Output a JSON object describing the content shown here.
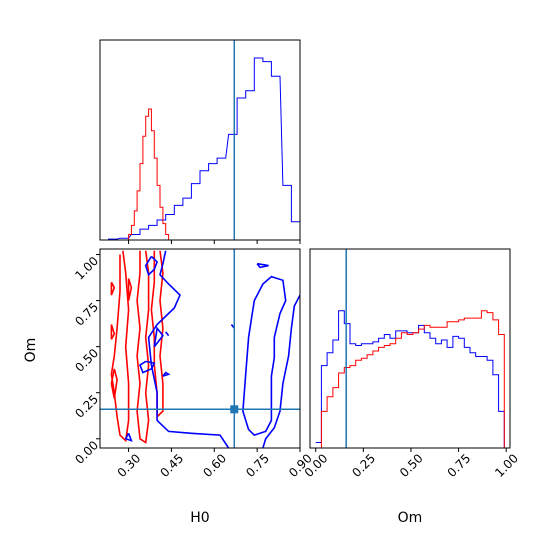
{
  "chart_data": {
    "type": "corner",
    "parameters": [
      "H0",
      "Om"
    ],
    "truths": {
      "H0": 0.67,
      "Om": 0.16
    },
    "colors": {
      "series_red": "#ff0000",
      "series_blue": "#0000ff",
      "truth": "#1f77b4"
    },
    "axis_label_H0": "H0",
    "axis_label_Om": "Om",
    "xlim_H0": [
      0.2,
      0.9
    ],
    "xlim_Om": [
      -0.03,
      1.02
    ],
    "ylim_Om": [
      -0.05,
      1.03
    ],
    "ticks_H0": [
      {
        "v": 0.3,
        "label": "0.30"
      },
      {
        "v": 0.45,
        "label": "0.45"
      },
      {
        "v": 0.6,
        "label": "0.60"
      },
      {
        "v": 0.75,
        "label": "0.75"
      },
      {
        "v": 0.9,
        "label": "0.90"
      }
    ],
    "ticks_Om": [
      {
        "v": 0.0,
        "label": "0.00"
      },
      {
        "v": 0.25,
        "label": "0.25"
      },
      {
        "v": 0.5,
        "label": "0.50"
      },
      {
        "v": 0.75,
        "label": "0.75"
      },
      {
        "v": 1.0,
        "label": "1.00"
      }
    ],
    "hist_H0": {
      "blue": [
        [
          0.2,
          0.0
        ],
        [
          0.23,
          0.005
        ],
        [
          0.27,
          0.01
        ],
        [
          0.31,
          0.03
        ],
        [
          0.34,
          0.06
        ],
        [
          0.37,
          0.08
        ],
        [
          0.4,
          0.11
        ],
        [
          0.43,
          0.14
        ],
        [
          0.46,
          0.19
        ],
        [
          0.49,
          0.23
        ],
        [
          0.52,
          0.31
        ],
        [
          0.55,
          0.38
        ],
        [
          0.58,
          0.42
        ],
        [
          0.61,
          0.45
        ],
        [
          0.65,
          0.58
        ],
        [
          0.68,
          0.78
        ],
        [
          0.71,
          0.82
        ],
        [
          0.74,
          1.0
        ],
        [
          0.77,
          0.98
        ],
        [
          0.8,
          0.9
        ],
        [
          0.84,
          0.3
        ],
        [
          0.87,
          0.1
        ],
        [
          0.9,
          0.0
        ]
      ],
      "red": [
        [
          0.2,
          0.0
        ],
        [
          0.29,
          0.0
        ],
        [
          0.3,
          0.03
        ],
        [
          0.31,
          0.08
        ],
        [
          0.32,
          0.16
        ],
        [
          0.33,
          0.27
        ],
        [
          0.34,
          0.42
        ],
        [
          0.35,
          0.57
        ],
        [
          0.36,
          0.68
        ],
        [
          0.37,
          0.72
        ],
        [
          0.38,
          0.6
        ],
        [
          0.39,
          0.45
        ],
        [
          0.4,
          0.3
        ],
        [
          0.41,
          0.18
        ],
        [
          0.42,
          0.09
        ],
        [
          0.43,
          0.03
        ],
        [
          0.44,
          0.0
        ]
      ]
    },
    "hist_Om": {
      "blue": [
        [
          0.0,
          0.03
        ],
        [
          0.03,
          0.45
        ],
        [
          0.06,
          0.52
        ],
        [
          0.09,
          0.59
        ],
        [
          0.12,
          0.75
        ],
        [
          0.15,
          0.68
        ],
        [
          0.18,
          0.57
        ],
        [
          0.21,
          0.56
        ],
        [
          0.24,
          0.57
        ],
        [
          0.27,
          0.57
        ],
        [
          0.3,
          0.58
        ],
        [
          0.33,
          0.6
        ],
        [
          0.36,
          0.62
        ],
        [
          0.39,
          0.6
        ],
        [
          0.42,
          0.64
        ],
        [
          0.45,
          0.64
        ],
        [
          0.48,
          0.63
        ],
        [
          0.51,
          0.63
        ],
        [
          0.54,
          0.67
        ],
        [
          0.57,
          0.63
        ],
        [
          0.6,
          0.6
        ],
        [
          0.63,
          0.57
        ],
        [
          0.66,
          0.59
        ],
        [
          0.69,
          0.55
        ],
        [
          0.72,
          0.61
        ],
        [
          0.75,
          0.6
        ],
        [
          0.78,
          0.55
        ],
        [
          0.81,
          0.52
        ],
        [
          0.84,
          0.5
        ],
        [
          0.87,
          0.5
        ],
        [
          0.9,
          0.48
        ],
        [
          0.93,
          0.4
        ],
        [
          0.96,
          0.2
        ],
        [
          0.99,
          0.0
        ]
      ],
      "red": [
        [
          0.0,
          0.0
        ],
        [
          0.03,
          0.2
        ],
        [
          0.06,
          0.28
        ],
        [
          0.09,
          0.33
        ],
        [
          0.12,
          0.41
        ],
        [
          0.15,
          0.44
        ],
        [
          0.18,
          0.45
        ],
        [
          0.21,
          0.48
        ],
        [
          0.24,
          0.49
        ],
        [
          0.27,
          0.51
        ],
        [
          0.3,
          0.53
        ],
        [
          0.33,
          0.55
        ],
        [
          0.36,
          0.56
        ],
        [
          0.39,
          0.57
        ],
        [
          0.42,
          0.6
        ],
        [
          0.45,
          0.63
        ],
        [
          0.48,
          0.62
        ],
        [
          0.51,
          0.63
        ],
        [
          0.54,
          0.65
        ],
        [
          0.57,
          0.67
        ],
        [
          0.6,
          0.66
        ],
        [
          0.63,
          0.66
        ],
        [
          0.66,
          0.66
        ],
        [
          0.69,
          0.69
        ],
        [
          0.72,
          0.69
        ],
        [
          0.75,
          0.7
        ],
        [
          0.78,
          0.71
        ],
        [
          0.81,
          0.71
        ],
        [
          0.84,
          0.71
        ],
        [
          0.87,
          0.75
        ],
        [
          0.9,
          0.74
        ],
        [
          0.93,
          0.7
        ],
        [
          0.96,
          0.62
        ],
        [
          0.99,
          0.0
        ]
      ]
    },
    "contours": {
      "red": [
        [
          [
            0.27,
            1.0
          ],
          [
            0.27,
            0.8
          ],
          [
            0.26,
            0.6
          ],
          [
            0.25,
            0.45
          ],
          [
            0.24,
            0.35
          ],
          [
            0.25,
            0.25
          ],
          [
            0.26,
            0.12
          ],
          [
            0.27,
            0.02
          ],
          [
            0.29,
            -0.01
          ],
          [
            0.3,
            0.1
          ],
          [
            0.3,
            0.3
          ],
          [
            0.29,
            0.5
          ],
          [
            0.3,
            0.7
          ],
          [
            0.29,
            0.9
          ],
          [
            0.28,
            1.02
          ]
        ],
        [
          [
            0.34,
            1.02
          ],
          [
            0.34,
            0.9
          ],
          [
            0.33,
            0.75
          ],
          [
            0.34,
            0.6
          ],
          [
            0.33,
            0.45
          ],
          [
            0.34,
            0.3
          ],
          [
            0.33,
            0.15
          ],
          [
            0.34,
            0.0
          ],
          [
            0.36,
            -0.02
          ],
          [
            0.37,
            0.1
          ],
          [
            0.36,
            0.25
          ],
          [
            0.37,
            0.4
          ],
          [
            0.36,
            0.55
          ],
          [
            0.37,
            0.7
          ],
          [
            0.37,
            0.9
          ],
          [
            0.36,
            1.02
          ]
        ],
        [
          [
            0.39,
            1.02
          ],
          [
            0.39,
            0.85
          ],
          [
            0.38,
            0.7
          ],
          [
            0.39,
            0.55
          ],
          [
            0.39,
            0.4
          ],
          [
            0.4,
            0.25
          ],
          [
            0.4,
            0.12
          ],
          [
            0.42,
            0.15
          ],
          [
            0.42,
            0.3
          ],
          [
            0.41,
            0.45
          ],
          [
            0.42,
            0.6
          ],
          [
            0.41,
            0.75
          ],
          [
            0.42,
            0.9
          ],
          [
            0.41,
            1.02
          ]
        ],
        [
          [
            0.25,
            0.38
          ],
          [
            0.24,
            0.3
          ],
          [
            0.25,
            0.22
          ],
          [
            0.26,
            0.32
          ],
          [
            0.25,
            0.38
          ]
        ],
        [
          [
            0.24,
            0.62
          ],
          [
            0.24,
            0.54
          ],
          [
            0.25,
            0.57
          ],
          [
            0.24,
            0.62
          ]
        ],
        [
          [
            0.24,
            0.85
          ],
          [
            0.24,
            0.78
          ],
          [
            0.25,
            0.82
          ],
          [
            0.24,
            0.85
          ]
        ],
        [
          [
            0.3,
            0.87
          ],
          [
            0.31,
            0.82
          ],
          [
            0.3,
            0.75
          ],
          [
            0.3,
            0.87
          ]
        ]
      ],
      "blue": [
        [
          [
            0.65,
            -0.05
          ],
          [
            0.62,
            0.02
          ],
          [
            0.52,
            0.03
          ],
          [
            0.44,
            0.04
          ],
          [
            0.4,
            0.1
          ],
          [
            0.4,
            0.25
          ],
          [
            0.38,
            0.4
          ],
          [
            0.37,
            0.55
          ],
          [
            0.4,
            0.62
          ],
          [
            0.46,
            0.71
          ],
          [
            0.48,
            0.78
          ],
          [
            0.44,
            0.84
          ],
          [
            0.41,
            0.89
          ],
          [
            0.42,
            0.95
          ],
          [
            0.43,
            1.02
          ]
        ],
        [
          [
            0.77,
            -0.05
          ],
          [
            0.78,
            0.0
          ],
          [
            0.81,
            0.06
          ],
          [
            0.83,
            0.15
          ],
          [
            0.84,
            0.3
          ],
          [
            0.86,
            0.45
          ],
          [
            0.87,
            0.6
          ],
          [
            0.88,
            0.72
          ],
          [
            0.9,
            0.78
          ]
        ],
        [
          [
            0.72,
            0.05
          ],
          [
            0.7,
            0.15
          ],
          [
            0.71,
            0.35
          ],
          [
            0.72,
            0.55
          ],
          [
            0.73,
            0.65
          ],
          [
            0.74,
            0.75
          ],
          [
            0.77,
            0.84
          ],
          [
            0.8,
            0.88
          ],
          [
            0.84,
            0.86
          ],
          [
            0.85,
            0.75
          ],
          [
            0.83,
            0.68
          ],
          [
            0.81,
            0.55
          ],
          [
            0.81,
            0.44
          ],
          [
            0.8,
            0.34
          ],
          [
            0.8,
            0.21
          ],
          [
            0.8,
            0.1
          ],
          [
            0.78,
            0.04
          ],
          [
            0.74,
            0.02
          ],
          [
            0.72,
            0.05
          ]
        ],
        [
          [
            0.38,
            0.99
          ],
          [
            0.36,
            0.94
          ],
          [
            0.37,
            0.89
          ],
          [
            0.39,
            0.92
          ],
          [
            0.4,
            0.96
          ],
          [
            0.38,
            0.99
          ]
        ],
        [
          [
            0.36,
            0.42
          ],
          [
            0.34,
            0.4
          ],
          [
            0.35,
            0.36
          ],
          [
            0.38,
            0.38
          ],
          [
            0.39,
            0.41
          ],
          [
            0.36,
            0.42
          ]
        ],
        [
          [
            0.39,
            0.5
          ],
          [
            0.4,
            0.6
          ],
          [
            0.42,
            0.56
          ],
          [
            0.39,
            0.5
          ]
        ],
        [
          [
            0.3,
            0.03
          ],
          [
            0.29,
            0.0
          ],
          [
            0.31,
            -0.01
          ],
          [
            0.3,
            0.03
          ]
        ],
        [
          [
            0.42,
            0.34
          ],
          [
            0.43,
            0.36
          ],
          [
            0.44,
            0.35
          ],
          [
            0.42,
            0.34
          ]
        ],
        [
          [
            0.75,
            0.95
          ],
          [
            0.76,
            0.93
          ],
          [
            0.79,
            0.94
          ],
          [
            0.75,
            0.95
          ]
        ],
        [
          [
            0.66,
            0.62
          ],
          [
            0.67,
            0.6
          ],
          [
            0.66,
            0.62
          ]
        ],
        [
          [
            0.43,
            0.58
          ],
          [
            0.44,
            0.56
          ],
          [
            0.43,
            0.58
          ]
        ]
      ]
    }
  }
}
